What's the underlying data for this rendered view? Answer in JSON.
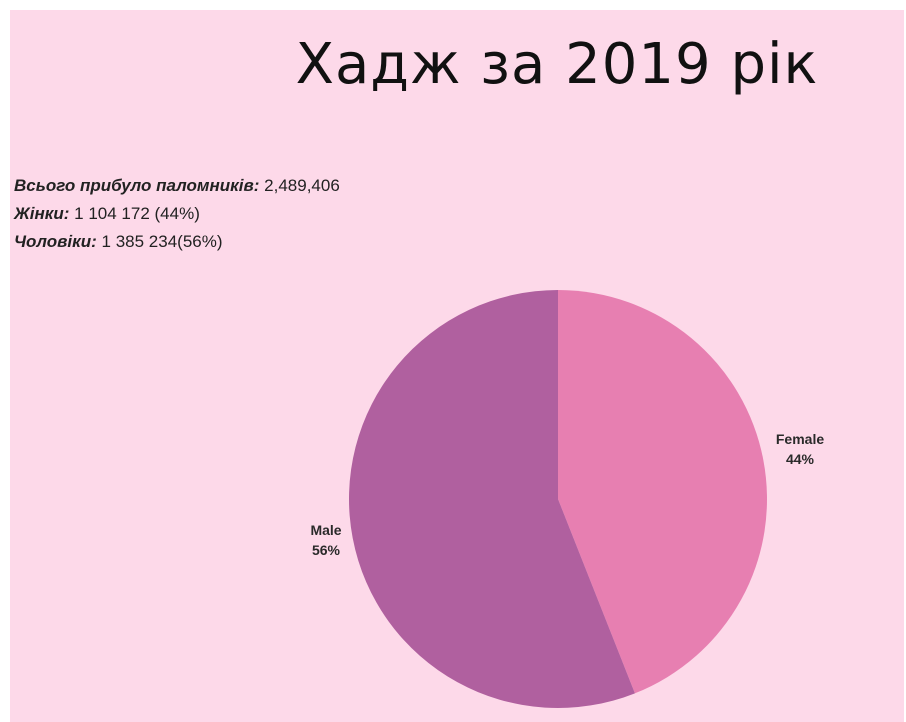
{
  "title": "Хадж за 2019 рік",
  "stats": [
    {
      "label": "Всього прибуло паломників:",
      "value": "2,489,406"
    },
    {
      "label": "Жінки:",
      "value": "1 104 172 (44%)"
    },
    {
      "label": "Чоловіки:",
      "value": "1 385 234(56%)"
    }
  ],
  "chart_data": {
    "type": "pie",
    "categories": [
      "Female",
      "Male"
    ],
    "values": [
      44,
      56
    ],
    "labels": [
      {
        "name": "Female",
        "percent": "44%"
      },
      {
        "name": "Male",
        "percent": "56%"
      }
    ],
    "colors": [
      "#e77fb1",
      "#b0609f"
    ],
    "start": "top, clockwise"
  }
}
